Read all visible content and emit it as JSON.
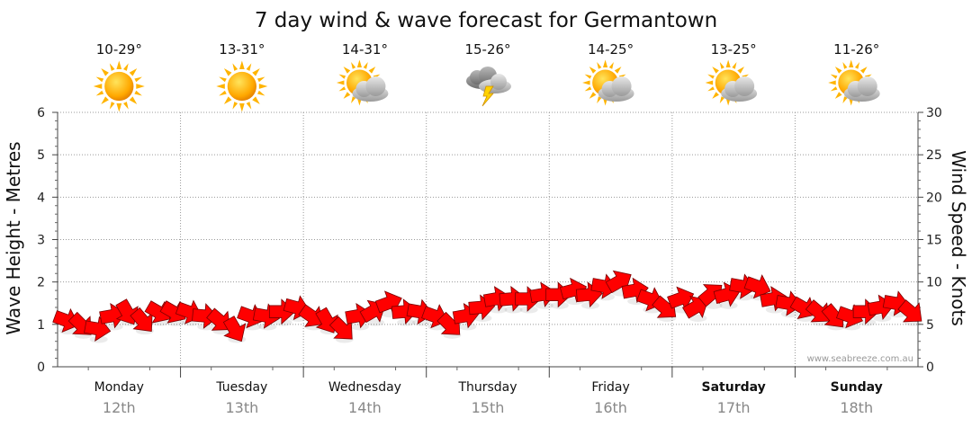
{
  "chart_data": {
    "type": "scatter",
    "title": "7 day wind & wave forecast for Germantown",
    "ylabel_left": "Wave Height - Metres",
    "ylabel_right": "Wind Speed - Knots",
    "ylim_left": [
      0,
      6
    ],
    "ylim_right": [
      0,
      30
    ],
    "yticks_left": [
      "0",
      "1",
      "2",
      "3",
      "4",
      "5",
      "6"
    ],
    "yticks_right": [
      "0",
      "5",
      "10",
      "15",
      "20",
      "25",
      "30"
    ],
    "grid": true,
    "credit": "www.seabreeze.com.au",
    "days": [
      {
        "name": "Monday",
        "date": "12th",
        "temp": "10-29°",
        "weather": "sun-icon",
        "bold": false
      },
      {
        "name": "Tuesday",
        "date": "13th",
        "temp": "13-31°",
        "weather": "sun-icon",
        "bold": false
      },
      {
        "name": "Wednesday",
        "date": "14th",
        "temp": "14-31°",
        "weather": "partly-cloudy-icon",
        "bold": false
      },
      {
        "name": "Thursday",
        "date": "15th",
        "temp": "15-26°",
        "weather": "storm-icon",
        "bold": false
      },
      {
        "name": "Friday",
        "date": "16th",
        "temp": "14-25°",
        "weather": "partly-cloudy-icon",
        "bold": false
      },
      {
        "name": "Saturday",
        "date": "17th",
        "temp": "13-25°",
        "weather": "partly-cloudy-icon",
        "bold": true
      },
      {
        "name": "Sunday",
        "date": "18th",
        "temp": "11-26°",
        "weather": "partly-cloudy-icon",
        "bold": true
      }
    ],
    "series": [
      {
        "marker": "wind-arrow-icon",
        "color": "#ff0000",
        "axis": "right",
        "x_hours": [
          0,
          3,
          6,
          9,
          12,
          15,
          18,
          21,
          24,
          27,
          30,
          33,
          36,
          39,
          42,
          45,
          48,
          51,
          54,
          57,
          60,
          63,
          66,
          69,
          72,
          75,
          78,
          81,
          84,
          87,
          90,
          93,
          96,
          99,
          102,
          105,
          108,
          111,
          114,
          117,
          120,
          123,
          126,
          129,
          132,
          135,
          138,
          141,
          144,
          147,
          150,
          153,
          156,
          159,
          162,
          165
        ],
        "wind_knots": [
          5.5,
          5,
          4.5,
          6,
          6.5,
          5.5,
          6.5,
          6.5,
          6.5,
          6,
          5.5,
          4.5,
          6,
          6,
          6.5,
          7,
          6,
          5.5,
          4.5,
          6,
          6.5,
          7.5,
          6.5,
          6.5,
          6,
          5,
          6,
          7,
          8,
          8,
          8,
          8.5,
          8.5,
          9,
          8.5,
          9.5,
          10,
          9,
          8,
          7,
          8,
          7,
          8.5,
          8.5,
          9.5,
          9.5,
          8,
          7.5,
          7,
          6.5,
          6,
          6,
          6.5,
          7,
          7.5,
          6.5
        ],
        "direction_deg": [
          110,
          135,
          100,
          80,
          150,
          140,
          120,
          120,
          110,
          95,
          130,
          150,
          110,
          100,
          90,
          105,
          125,
          150,
          135,
          80,
          60,
          70,
          85,
          100,
          110,
          135,
          80,
          85,
          80,
          85,
          90,
          80,
          90,
          75,
          85,
          100,
          60,
          80,
          110,
          130,
          70,
          60,
          50,
          75,
          100,
          110,
          80,
          100,
          120,
          130,
          140,
          110,
          90,
          80,
          100,
          130
        ]
      }
    ]
  }
}
